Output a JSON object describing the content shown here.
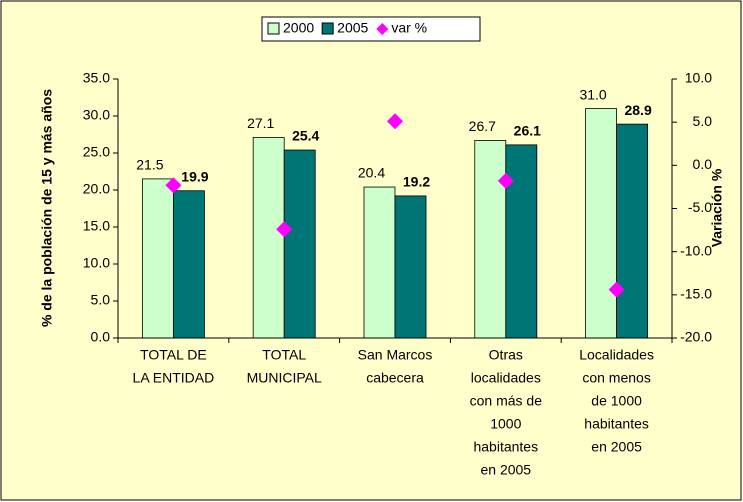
{
  "chart_data": {
    "type": "bar",
    "categories": [
      [
        "TOTAL DE",
        "LA ENTIDAD"
      ],
      [
        "TOTAL",
        "MUNICIPAL"
      ],
      [
        "San Marcos",
        "cabecera"
      ],
      [
        "Otras",
        "localidades",
        "con más de",
        "1000",
        "habitantes",
        "en 2005"
      ],
      [
        "Localidades",
        "con menos",
        "de 1000",
        "habitantes",
        "en 2005"
      ]
    ],
    "series": [
      {
        "name": "2000",
        "color": "#ccffcc",
        "values": [
          21.5,
          27.1,
          20.4,
          26.7,
          31.0
        ],
        "value_labels": [
          "21.5",
          "27.1",
          "20.4",
          "26.7",
          "31.0"
        ]
      },
      {
        "name": "2005",
        "color": "#007575",
        "values": [
          19.9,
          25.4,
          19.2,
          26.1,
          28.9
        ],
        "value_labels": [
          "19.9",
          "25.4",
          "19.2",
          "26.1",
          "28.9"
        ]
      },
      {
        "name": "var %",
        "color": "#ff00ff",
        "axis": "y2",
        "values": [
          -2.3,
          -7.4,
          5.1,
          -1.8,
          -14.4
        ]
      }
    ],
    "ylabel": "% de la población de 15 y más años",
    "y2label": "Variación %",
    "ylim": [
      0,
      35
    ],
    "yticks": [
      {
        "value": 0,
        "label": "0.0"
      },
      {
        "value": 5,
        "label": "5.0"
      },
      {
        "value": 10,
        "label": "10.0"
      },
      {
        "value": 15,
        "label": "15.0"
      },
      {
        "value": 20,
        "label": "20.0"
      },
      {
        "value": 25,
        "label": "25.0"
      },
      {
        "value": 30,
        "label": "30.0"
      },
      {
        "value": 35,
        "label": "35.0"
      }
    ],
    "y2lim": [
      -20,
      10
    ],
    "y2ticks": [
      {
        "value": -20,
        "label": "-20.0"
      },
      {
        "value": -15,
        "label": "-15.0"
      },
      {
        "value": -10,
        "label": "-10.0"
      },
      {
        "value": -5,
        "label": "-5.0"
      },
      {
        "value": 0,
        "label": "0.0"
      },
      {
        "value": 5,
        "label": "5.0"
      },
      {
        "value": 10,
        "label": "10.0"
      }
    ],
    "legend": "top",
    "grid": false
  }
}
